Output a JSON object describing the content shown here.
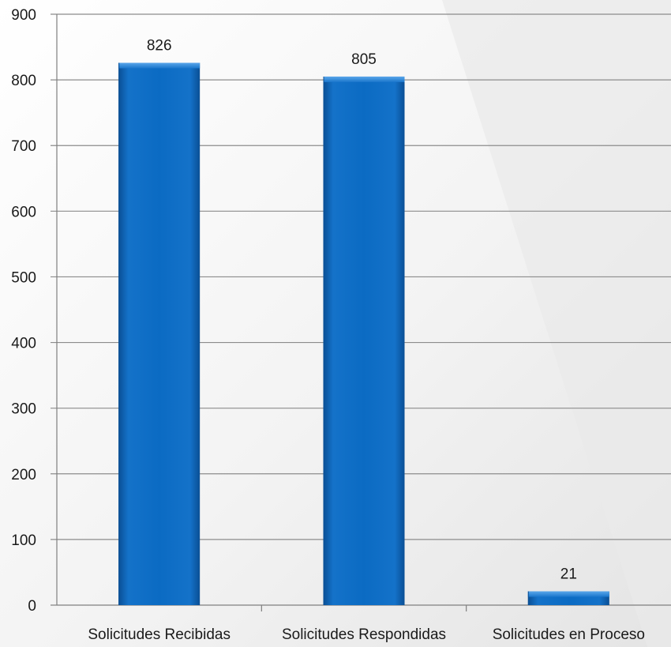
{
  "chart_data": {
    "type": "bar",
    "categories": [
      "Solicitudes Recibidas",
      "Solicitudes Respondidas",
      "Solicitudes en Proceso"
    ],
    "values": [
      826,
      805,
      21
    ],
    "data_labels": [
      "826",
      "805",
      "21"
    ],
    "title": "",
    "xlabel": "",
    "ylabel": "",
    "ylim": [
      0,
      900
    ],
    "yticks": [
      0,
      100,
      200,
      300,
      400,
      500,
      600,
      700,
      800,
      900
    ],
    "grid": true,
    "legend": "none",
    "colors": {
      "bar": "#0a6cc2",
      "bar_dark": "#0a4f95",
      "bar_light": "#3a8fdc",
      "gridline": "#8c8c8c",
      "axis": "#7f7f7f",
      "text": "#1a1a1a"
    }
  }
}
